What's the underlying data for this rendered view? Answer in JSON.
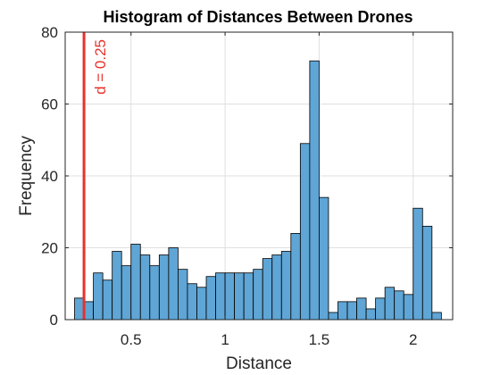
{
  "chart_data": {
    "type": "bar",
    "title": "Histogram of Distances Between Drones",
    "xlabel": "Distance",
    "ylabel": "Frequency",
    "xlim": [
      0.15,
      2.21
    ],
    "ylim": [
      0,
      80
    ],
    "xticks": [
      0.5,
      1,
      1.5,
      2
    ],
    "xtick_labels": [
      "0.5",
      "1",
      "1.5",
      "2"
    ],
    "yticks": [
      0,
      20,
      40,
      60,
      80
    ],
    "ytick_labels": [
      "0",
      "20",
      "40",
      "60",
      "80"
    ],
    "grid": true,
    "bin_start": 0.2,
    "bin_width": 0.05,
    "counts": [
      6,
      5,
      13,
      11,
      19,
      15,
      21,
      18,
      15,
      18,
      20,
      14,
      10,
      9,
      12,
      13,
      13,
      13,
      13,
      14,
      17,
      18,
      19,
      24,
      49,
      72,
      34,
      2,
      5,
      5,
      6,
      3,
      6,
      9,
      8,
      7,
      31,
      26,
      2
    ],
    "bar_color": "#5fa5d5",
    "bar_edge_color": "#000000",
    "annotation": {
      "type": "vertical-line",
      "x": 0.25,
      "label": "d = 0.25",
      "color": "#e8312a"
    }
  }
}
